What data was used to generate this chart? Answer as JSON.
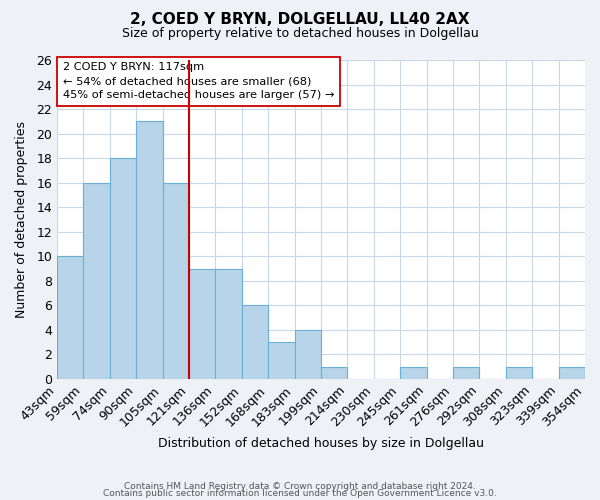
{
  "title": "2, COED Y BRYN, DOLGELLAU, LL40 2AX",
  "subtitle": "Size of property relative to detached houses in Dolgellau",
  "xlabel": "Distribution of detached houses by size in Dolgellau",
  "ylabel": "Number of detached properties",
  "bin_edges_labels": [
    "43sqm",
    "59sqm",
    "74sqm",
    "90sqm",
    "105sqm",
    "121sqm",
    "136sqm",
    "152sqm",
    "168sqm",
    "183sqm",
    "199sqm",
    "214sqm",
    "230sqm",
    "245sqm",
    "261sqm",
    "276sqm",
    "292sqm",
    "308sqm",
    "323sqm",
    "339sqm",
    "354sqm"
  ],
  "bar_heights": [
    10,
    16,
    18,
    21,
    16,
    9,
    9,
    6,
    3,
    4,
    1,
    0,
    0,
    1,
    0,
    1,
    0,
    1,
    0,
    1
  ],
  "bar_color": "#b8d4e8",
  "bar_edge_color": "#6aafd6",
  "reference_line_index": 5,
  "reference_line_color": "#cc0000",
  "annotation_title": "2 COED Y BRYN: 117sqm",
  "annotation_line2": "← 54% of detached houses are smaller (68)",
  "annotation_line3": "45% of semi-detached houses are larger (57) →",
  "annotation_box_edge_color": "#cc0000",
  "ylim": [
    0,
    26
  ],
  "yticks": [
    0,
    2,
    4,
    6,
    8,
    10,
    12,
    14,
    16,
    18,
    20,
    22,
    24,
    26
  ],
  "footer_line1": "Contains HM Land Registry data © Crown copyright and database right 2024.",
  "footer_line2": "Contains public sector information licensed under the Open Government Licence v3.0.",
  "bg_color": "#eef2f7",
  "plot_bg_color": "#ffffff",
  "grid_color": "#c8d8e8"
}
